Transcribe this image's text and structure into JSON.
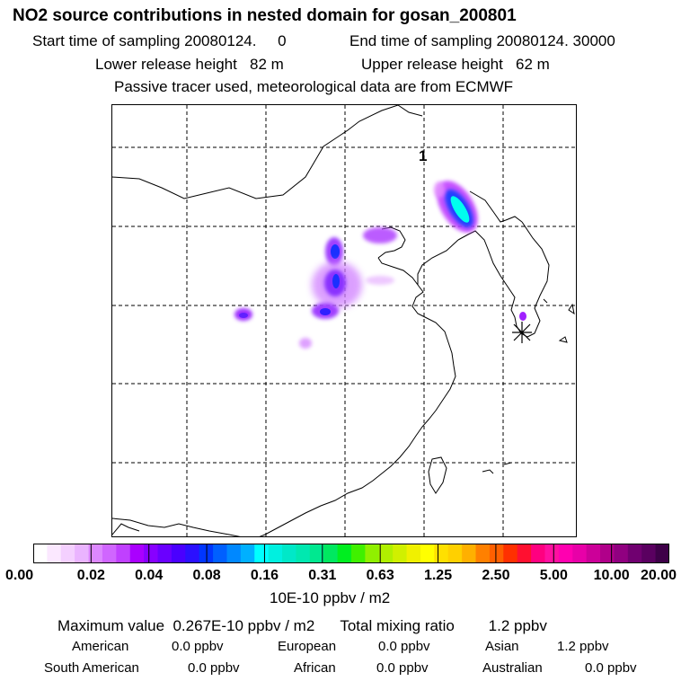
{
  "header": {
    "title": "NO2 source contributions in nested domain for gosan_200801",
    "start_time": "Start time of sampling 20080124.     0",
    "end_time": "End time of sampling 20080124. 30000",
    "lower_release": "Lower release height   82 m",
    "upper_release": "Upper release height   62 m",
    "tracer_note": "Passive tracer used, meteorological data are from ECMWF"
  },
  "map": {
    "label": "1",
    "receptor_marker": "star-marker",
    "colors": {
      "border": "#000000",
      "grid": "#000000",
      "plume_violet": "#c040ff",
      "plume_blue": "#2040ff",
      "plume_cyan": "#00ffee"
    }
  },
  "colorbar": {
    "tick_labels": [
      "0.00",
      "0.02",
      "0.04",
      "0.08",
      "0.16",
      "0.31",
      "0.63",
      "1.25",
      "2.50",
      "5.00",
      "10.00",
      "20.00"
    ],
    "colors": [
      "#ffffff",
      "#fbe8ff",
      "#f4d0ff",
      "#eab4ff",
      "#dd88ff",
      "#d066ff",
      "#c040ff",
      "#aa00ff",
      "#8800ff",
      "#6a00ff",
      "#4a00ff",
      "#2b10ff",
      "#0036ff",
      "#0060ff",
      "#0088ff",
      "#00b0ff",
      "#00ffff",
      "#00f0e0",
      "#00e8c8",
      "#00e8b0",
      "#00e890",
      "#00e860",
      "#00ee20",
      "#40f000",
      "#90f000",
      "#b0f000",
      "#d0f000",
      "#f0f000",
      "#ffff00",
      "#ffe000",
      "#ffd000",
      "#ffb000",
      "#ff8000",
      "#ff6000",
      "#ff3000",
      "#ff1030",
      "#ff0080",
      "#ff10a0",
      "#ff00b0",
      "#e800a8",
      "#cc0099",
      "#b0008a",
      "#900080",
      "#700070",
      "#5a0060",
      "#3e0048"
    ],
    "units": "10E-10 ppbv / m2"
  },
  "summary": {
    "max_line": "Maximum value  0.267E-10 ppbv / m2      Total mixing ratio        1.2 ppbv",
    "regions": [
      {
        "name": "American",
        "value": "0.0 ppbv"
      },
      {
        "name": "European",
        "value": "0.0 ppbv"
      },
      {
        "name": "Asian",
        "value": "1.2 ppbv"
      },
      {
        "name": "South American",
        "value": "0.0 ppbv"
      },
      {
        "name": "African",
        "value": "0.0 ppbv"
      },
      {
        "name": "Australian",
        "value": "0.0 ppbv"
      }
    ]
  }
}
